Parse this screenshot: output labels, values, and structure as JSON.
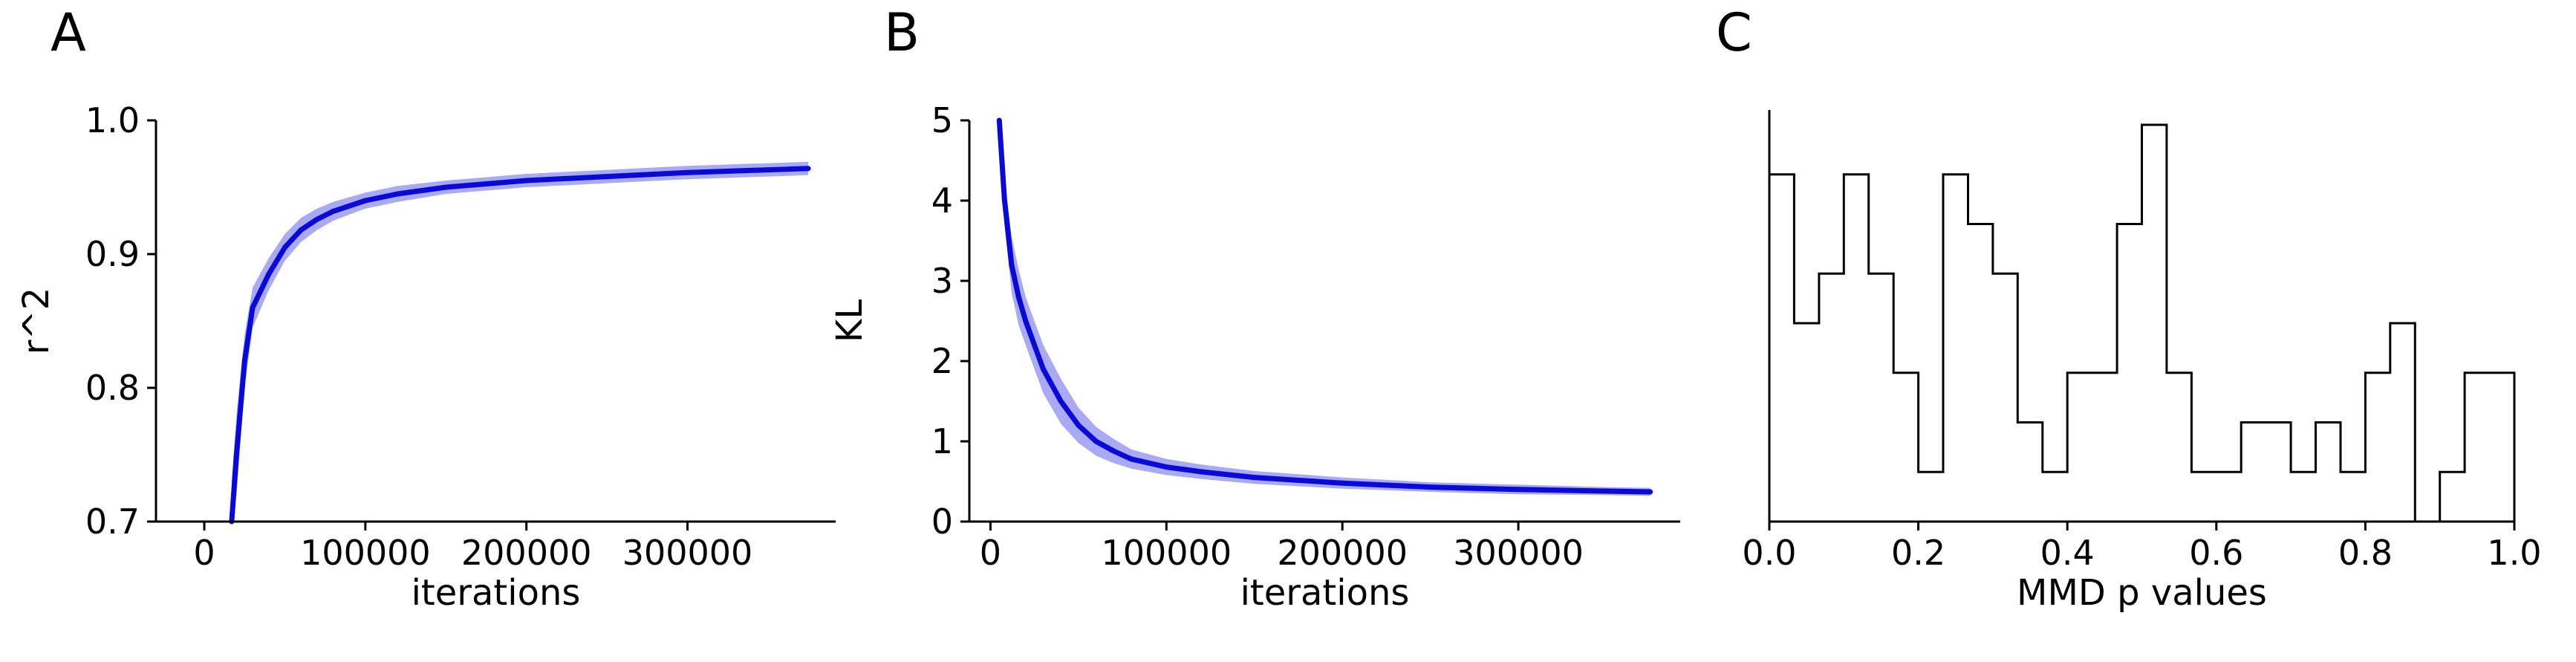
{
  "chart_data": [
    {
      "panel": "A",
      "type": "line",
      "xlabel": "iterations",
      "ylabel": "r^2",
      "xlim": [
        -30000,
        392000
      ],
      "ylim": [
        0.7,
        1.0
      ],
      "xticks": [
        0,
        100000,
        200000,
        300000
      ],
      "xtick_labels": [
        "0",
        "100000",
        "200000",
        "300000"
      ],
      "yticks": [
        0.7,
        0.8,
        0.9,
        1.0
      ],
      "ytick_labels": [
        "0.7",
        "0.8",
        "0.9",
        "1.0"
      ],
      "grid": false,
      "colors": {
        "mean": "#0a0ad2",
        "band": "#8c8cf0"
      },
      "series": [
        {
          "x": [
            17000,
            20000,
            25000,
            30000,
            40000,
            50000,
            60000,
            70000,
            80000,
            100000,
            120000,
            150000,
            200000,
            250000,
            300000,
            350000,
            375000
          ],
          "y": [
            0.7,
            0.75,
            0.82,
            0.86,
            0.885,
            0.905,
            0.918,
            0.926,
            0.932,
            0.94,
            0.945,
            0.95,
            0.955,
            0.958,
            0.961,
            0.963,
            0.964
          ],
          "band": [
            0.03,
            0.03,
            0.02,
            0.015,
            0.012,
            0.01,
            0.009,
            0.008,
            0.007,
            0.006,
            0.006,
            0.005,
            0.005,
            0.005,
            0.005,
            0.005,
            0.005
          ]
        }
      ]
    },
    {
      "panel": "B",
      "type": "line",
      "xlabel": "iterations",
      "ylabel": "KL",
      "xlim": [
        -12000,
        392000
      ],
      "ylim": [
        0,
        5
      ],
      "xticks": [
        0,
        100000,
        200000,
        300000
      ],
      "xtick_labels": [
        "0",
        "100000",
        "200000",
        "300000"
      ],
      "yticks": [
        0,
        1,
        2,
        3,
        4,
        5
      ],
      "ytick_labels": [
        "0",
        "1",
        "2",
        "3",
        "4",
        "5"
      ],
      "grid": false,
      "colors": {
        "mean": "#0a0ad2",
        "band": "#8c8cf0"
      },
      "series": [
        {
          "x": [
            5000,
            8000,
            12000,
            16000,
            20000,
            25000,
            30000,
            40000,
            50000,
            60000,
            70000,
            80000,
            100000,
            120000,
            150000,
            200000,
            250000,
            300000,
            350000,
            375000
          ],
          "y": [
            5.0,
            4.0,
            3.2,
            2.8,
            2.5,
            2.2,
            1.9,
            1.5,
            1.2,
            1.0,
            0.88,
            0.78,
            0.68,
            0.62,
            0.55,
            0.48,
            0.43,
            0.4,
            0.38,
            0.37
          ],
          "band": [
            0.3,
            0.3,
            0.35,
            0.35,
            0.3,
            0.3,
            0.3,
            0.28,
            0.22,
            0.18,
            0.15,
            0.12,
            0.1,
            0.09,
            0.08,
            0.07,
            0.06,
            0.06,
            0.05,
            0.05
          ]
        }
      ]
    },
    {
      "panel": "C",
      "type": "histogram",
      "xlabel": "MMD p values",
      "ylabel": "",
      "xlim": [
        0,
        1
      ],
      "ylim": [
        0,
        8.3
      ],
      "xticks": [
        0.0,
        0.2,
        0.4,
        0.6,
        0.8,
        1.0
      ],
      "xtick_labels": [
        "0.0",
        "0.2",
        "0.4",
        "0.6",
        "0.8",
        "1.0"
      ],
      "grid": false,
      "colors": {
        "edge": "#000000"
      },
      "bin_width": 0.0333,
      "counts": [
        7,
        4,
        5,
        7,
        5,
        3,
        1,
        7,
        6,
        5,
        2,
        1,
        3,
        3,
        6,
        8,
        3,
        1,
        1,
        2,
        2,
        1,
        2,
        1,
        3,
        4,
        0,
        1,
        3,
        3
      ]
    }
  ],
  "panels": [
    "A",
    "B",
    "C"
  ]
}
